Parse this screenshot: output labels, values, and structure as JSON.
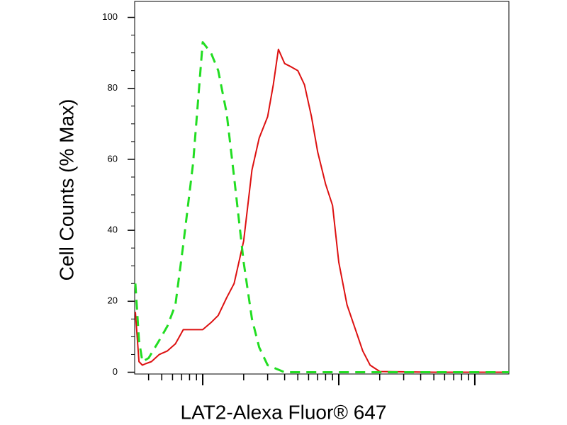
{
  "chart_data": {
    "type": "line",
    "xlog": true,
    "xlabel": "LAT2-Alexa Fluor® 647",
    "ylabel": "Cell Counts (% Max)",
    "xlim": [
      31.6,
      17800
    ],
    "xticks": [
      100,
      1000,
      10000
    ],
    "ylim": [
      -0.5,
      104.5
    ],
    "yticks": [
      0,
      20,
      40,
      60,
      80,
      100
    ],
    "series": [
      {
        "color": "#dd1111",
        "dashed": false,
        "x": [
          32,
          34,
          36,
          38,
          42,
          48,
          55,
          63,
          72,
          85,
          100,
          115,
          130,
          150,
          170,
          200,
          230,
          260,
          300,
          330,
          360,
          400,
          450,
          500,
          560,
          630,
          700,
          800,
          900,
          1000,
          1150,
          1300,
          1500,
          1700,
          2000,
          5000,
          17800
        ],
        "values": [
          17,
          3,
          2,
          2.4,
          3,
          5,
          6,
          8,
          12,
          12,
          12,
          14,
          16,
          21,
          25,
          37,
          57,
          66,
          72,
          81,
          91,
          87,
          86,
          85,
          81,
          72,
          62,
          53,
          47,
          31,
          19,
          13,
          6,
          2,
          0.2,
          0,
          0
        ]
      },
      {
        "color": "#22dd22",
        "dashed": true,
        "x": [
          32,
          34,
          36,
          40,
          48,
          55,
          63,
          72,
          85,
          100,
          115,
          130,
          150,
          170,
          200,
          230,
          260,
          300,
          400,
          17800
        ],
        "values": [
          25,
          9,
          3,
          4,
          9,
          13,
          19,
          36,
          59,
          93,
          90,
          85,
          73,
          55,
          31,
          15,
          7,
          2,
          0,
          0
        ]
      }
    ]
  }
}
